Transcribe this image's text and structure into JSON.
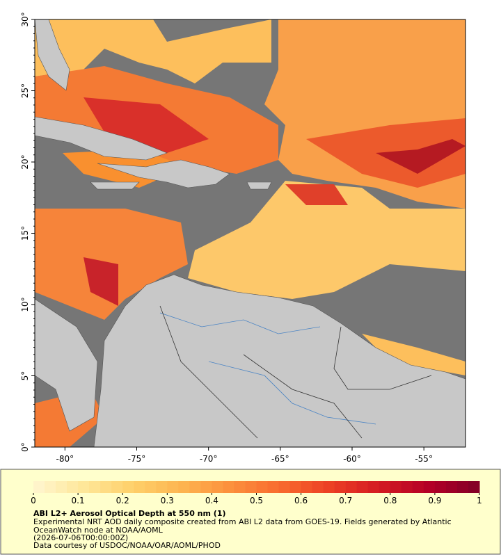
{
  "map": {
    "xlim": [
      -82.1,
      -52.1
    ],
    "ylim": [
      0,
      30
    ],
    "xticks": [
      {
        "value": -80,
        "label": "-80°"
      },
      {
        "value": -75,
        "label": "-75°"
      },
      {
        "value": -70,
        "label": "-70°"
      },
      {
        "value": -65,
        "label": "-65°"
      },
      {
        "value": -60,
        "label": "-60°"
      },
      {
        "value": -55,
        "label": "-55°"
      }
    ],
    "yticks": [
      {
        "value": 0,
        "label": "0°"
      },
      {
        "value": 5,
        "label": "5°"
      },
      {
        "value": 10,
        "label": "10°"
      },
      {
        "value": 15,
        "label": "15°"
      },
      {
        "value": 20,
        "label": "20°"
      },
      {
        "value": 25,
        "label": "25°"
      },
      {
        "value": 30,
        "label": "30°"
      }
    ]
  },
  "colorbar": {
    "lim": [
      0,
      1
    ],
    "ticks": [
      0,
      0.1,
      0.2,
      0.3,
      0.4,
      0.5,
      0.6,
      0.7,
      0.8,
      0.9,
      1
    ],
    "colors": [
      "#fff6d0",
      "#fee79a",
      "#fed06a",
      "#fdb450",
      "#fc8f3c",
      "#f86a2e",
      "#ec3f24",
      "#d31a22",
      "#b30026",
      "#800026"
    ]
  },
  "caption": {
    "title": "ABI L2+ Aerosol Optical Depth at 550 nm (1)",
    "lines": [
      "Experimental NRT AOD daily composite created from ABI L2 data from GOES-19. Fields generated by Atlantic",
      "OceanWatch node at NOAA/AOML",
      "(2026-07-06T00:00:00Z)",
      "Data courtesy of USDOC/NOAA/OAR/AOML/PHOD"
    ]
  }
}
